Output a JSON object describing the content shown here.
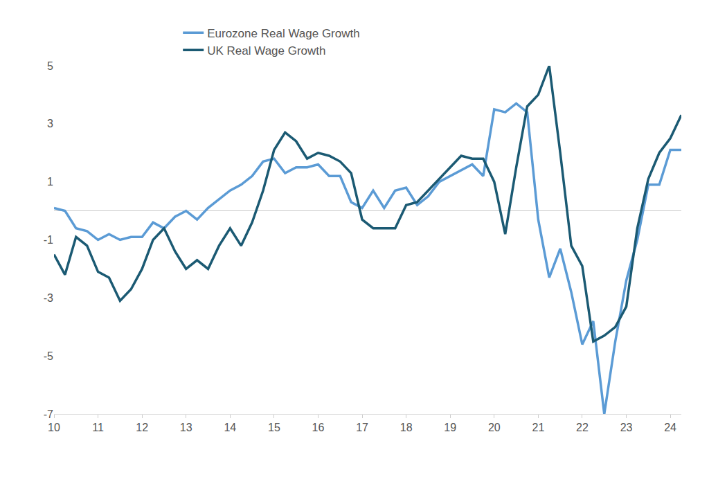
{
  "chart_data": {
    "type": "line",
    "categories": [
      "10",
      null,
      null,
      null,
      "11",
      null,
      null,
      null,
      "12",
      null,
      null,
      null,
      "13",
      null,
      null,
      null,
      "14",
      null,
      null,
      null,
      "15",
      null,
      null,
      null,
      "16",
      null,
      null,
      null,
      "17",
      null,
      null,
      null,
      "18",
      null,
      null,
      null,
      "19",
      null,
      null,
      null,
      "20",
      null,
      null,
      null,
      "21",
      null,
      null,
      null,
      "22",
      null,
      null,
      null,
      "23",
      null,
      null,
      null,
      "24",
      null
    ],
    "series": [
      {
        "name": "Eurozone Real Wage Growth",
        "color": "#5b9bd5",
        "values": [
          0.1,
          0.0,
          -0.6,
          -0.7,
          -1.0,
          -0.8,
          -1.0,
          -0.9,
          -0.9,
          -0.4,
          -0.6,
          -0.2,
          0.0,
          -0.3,
          0.1,
          0.4,
          0.7,
          0.9,
          1.2,
          1.7,
          1.8,
          1.3,
          1.5,
          1.5,
          1.6,
          1.2,
          1.2,
          0.3,
          0.1,
          0.7,
          0.1,
          0.7,
          0.8,
          0.2,
          0.5,
          1.0,
          1.2,
          1.4,
          1.6,
          1.2,
          3.5,
          3.4,
          3.7,
          3.4,
          -0.3,
          -2.3,
          -1.3,
          -2.8,
          -4.6,
          -3.8,
          -7.0,
          -4.5,
          -2.4,
          -1.0,
          0.9,
          0.9,
          2.1,
          2.1
        ]
      },
      {
        "name": "UK Real Wage Growth",
        "color": "#1b5a73",
        "values": [
          -1.5,
          -2.2,
          -0.9,
          -1.2,
          -2.1,
          -2.3,
          -3.1,
          -2.7,
          -2.0,
          -1.0,
          -0.6,
          -1.4,
          -2.0,
          -1.7,
          -2.0,
          -1.2,
          -0.6,
          -1.2,
          -0.4,
          0.7,
          2.1,
          2.7,
          2.4,
          1.8,
          2.0,
          1.9,
          1.7,
          1.3,
          -0.3,
          -0.6,
          -0.6,
          -0.6,
          0.2,
          0.3,
          0.7,
          1.1,
          1.5,
          1.9,
          1.8,
          1.8,
          1.0,
          -0.8,
          1.5,
          3.6,
          4.0,
          5.0,
          2.0,
          -1.2,
          -1.9,
          -4.5,
          -4.3,
          -4.0,
          -3.3,
          -0.6,
          1.1,
          2.0,
          2.5,
          3.3
        ]
      }
    ],
    "ylim": [
      -7,
      5
    ],
    "yticks": [
      -7,
      -5,
      -3,
      -1,
      1,
      3,
      5
    ],
    "grid": false,
    "legend": "top"
  }
}
